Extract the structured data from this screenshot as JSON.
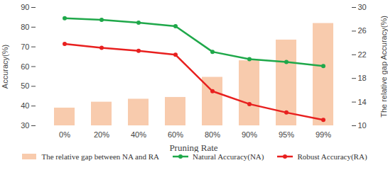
{
  "chart_data": {
    "type": "bar",
    "categories": [
      "0%",
      "20%",
      "40%",
      "60%",
      "80%",
      "90%",
      "95%",
      "99%"
    ],
    "x_label": "Pruning Rate",
    "y_label": "Accuracy(%)",
    "y2_label": "The relative gap Accuracy(%)",
    "ylim": [
      30,
      90
    ],
    "yticks": [
      30,
      40,
      50,
      60,
      70,
      80,
      90
    ],
    "y2lim": [
      10,
      30
    ],
    "y2ticks": [
      10,
      14,
      18,
      22,
      26,
      30
    ],
    "legend": "bottom",
    "series": [
      {
        "name": "The relative gap between NA and RA",
        "type": "bar",
        "axis": "y2",
        "color": "#f8cbad",
        "values": [
          13.0,
          14.0,
          14.5,
          14.8,
          18.2,
          21.0,
          24.5,
          27.3
        ]
      },
      {
        "name": "Natural Accuracy(NA)",
        "type": "line",
        "marker": "circle",
        "color": "#1fa84a",
        "values": [
          84.5,
          83.7,
          82.3,
          80.5,
          67.5,
          63.8,
          62.3,
          60.3
        ]
      },
      {
        "name": "Robust Accuracy(RA)",
        "type": "line",
        "marker": "circle",
        "color": "#e8201f",
        "values": [
          71.5,
          69.5,
          68.0,
          66.0,
          47.5,
          41.0,
          36.7,
          33.0
        ]
      }
    ]
  }
}
